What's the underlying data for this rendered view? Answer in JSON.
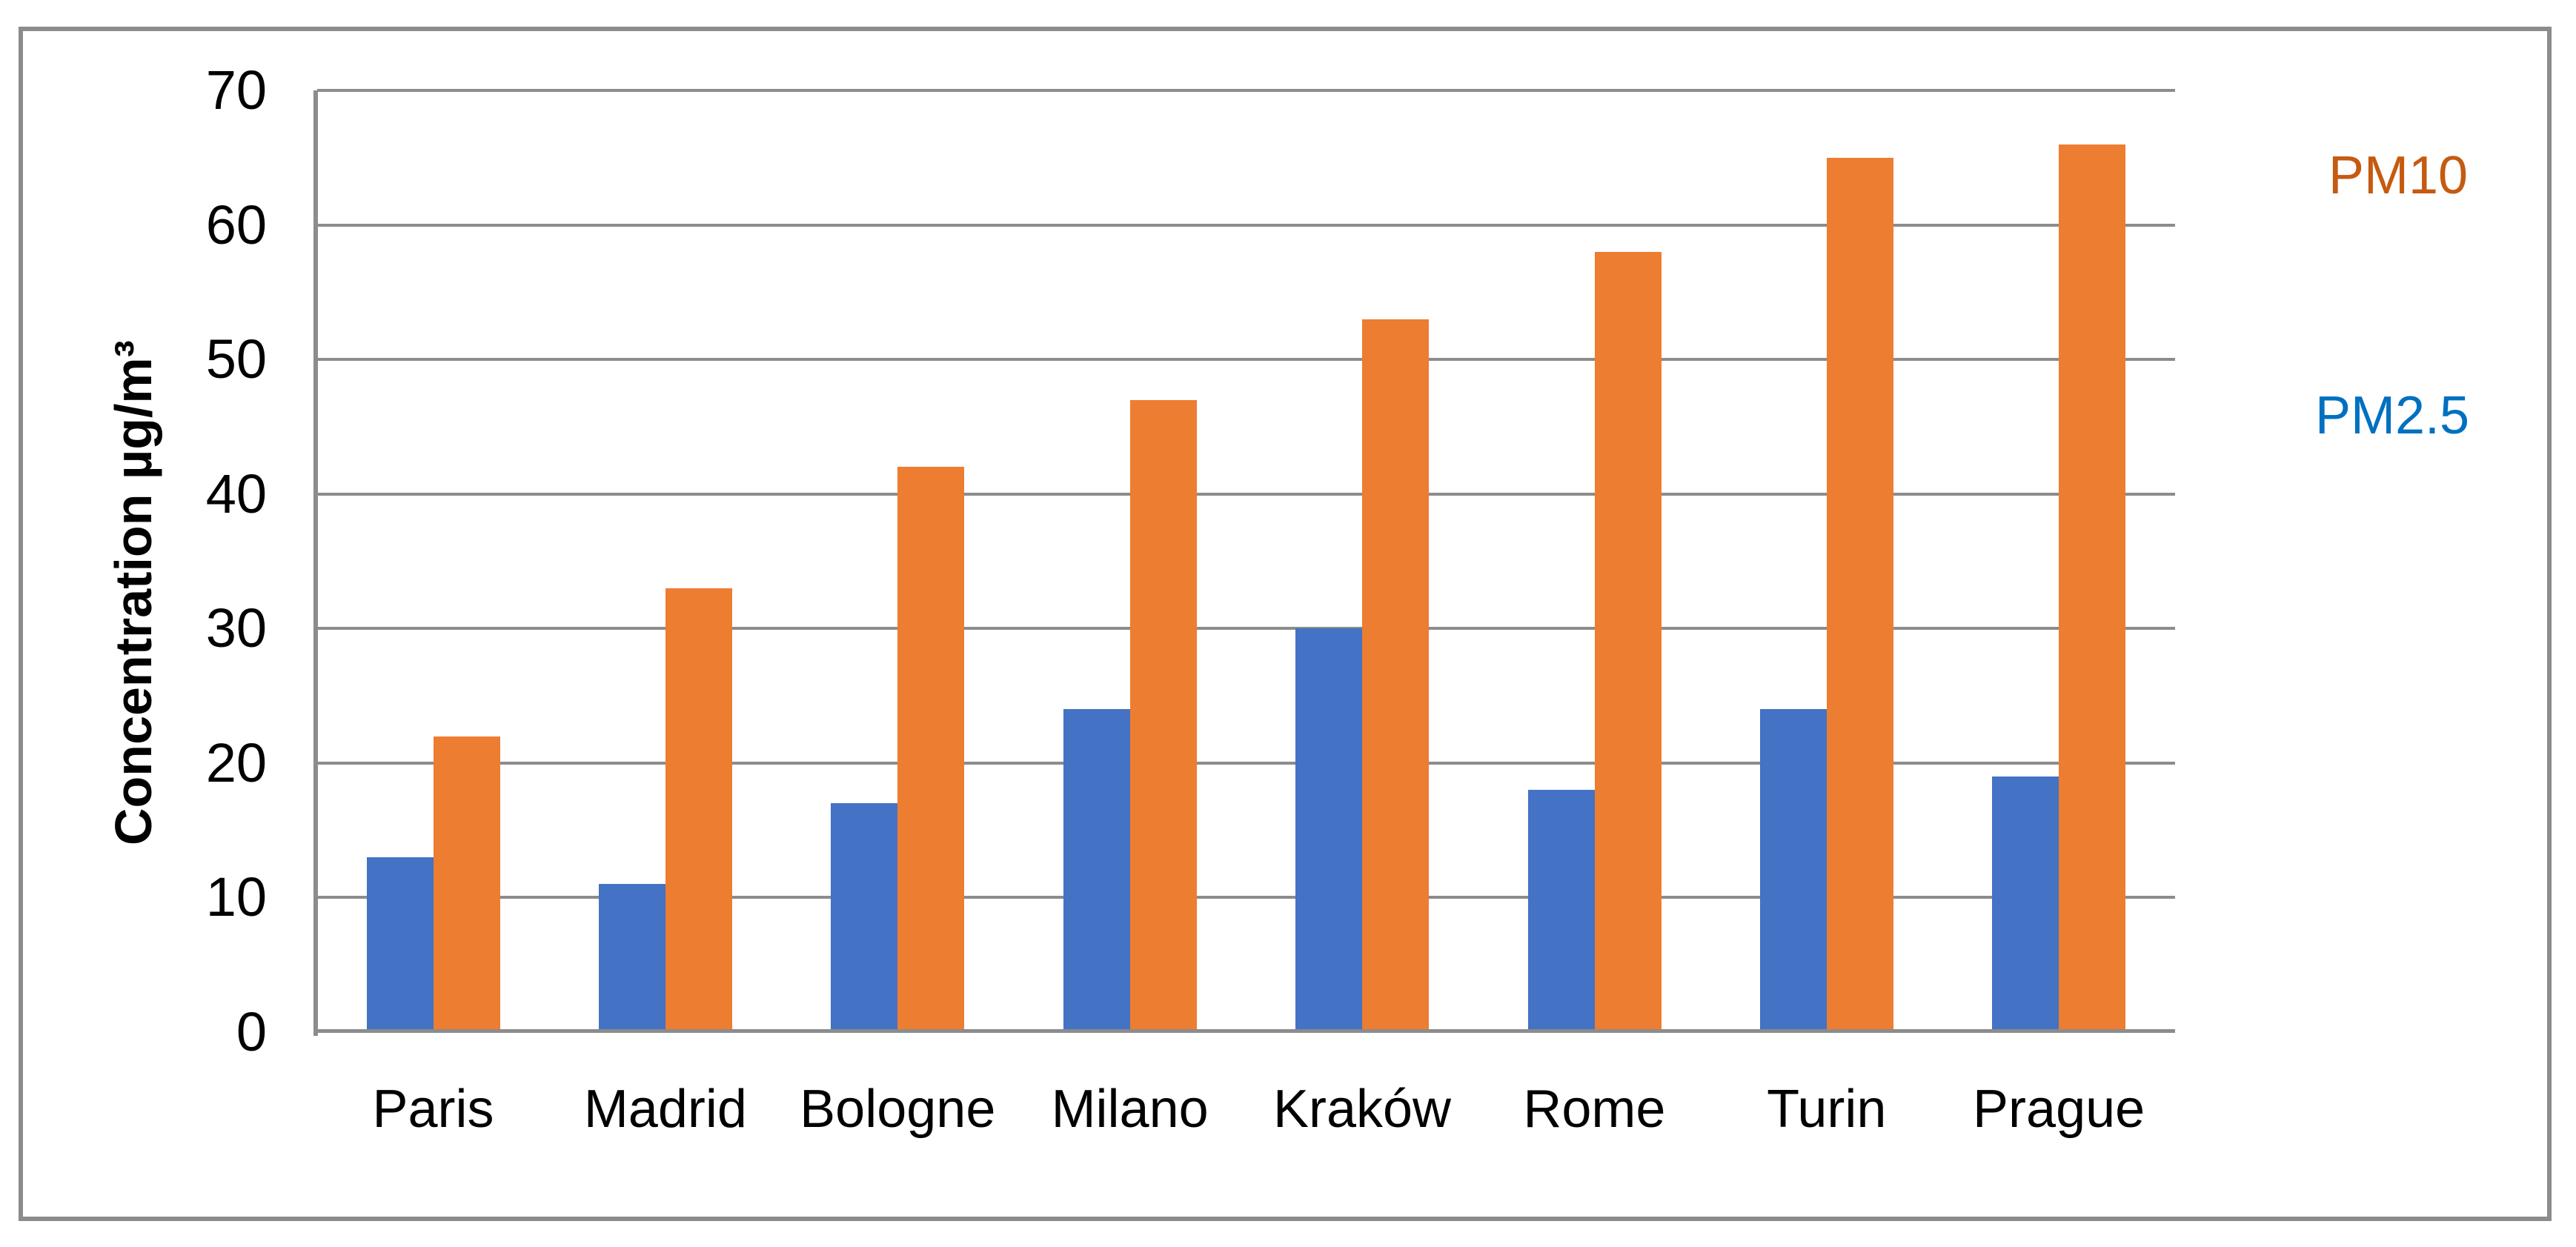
{
  "chart_data": {
    "type": "bar",
    "title": "",
    "categories": [
      "Paris",
      "Madrid",
      "Bologne",
      "Milano",
      "Kraków",
      "Rome",
      "Turin",
      "Prague"
    ],
    "series": [
      {
        "name": "PM2.5",
        "color": "#4472C4",
        "label_color": "#0070C0",
        "values": [
          13,
          11,
          17,
          24,
          30,
          18,
          24,
          19
        ]
      },
      {
        "name": "PM10",
        "color": "#ED7D31",
        "label_color": "#C55A11",
        "values": [
          22,
          33,
          42,
          47,
          53,
          58,
          65,
          66
        ]
      }
    ],
    "xlabel": "",
    "ylabel": "Concentration µg/m³",
    "ylim": [
      0,
      70
    ],
    "yticks": [
      0,
      10,
      20,
      30,
      40,
      50,
      60,
      70
    ],
    "grid": true,
    "gridline_color": "#8C8C8C",
    "legend_position": "right",
    "background_color": "#FFFFFF",
    "frame_color": "#8C8C8C"
  }
}
